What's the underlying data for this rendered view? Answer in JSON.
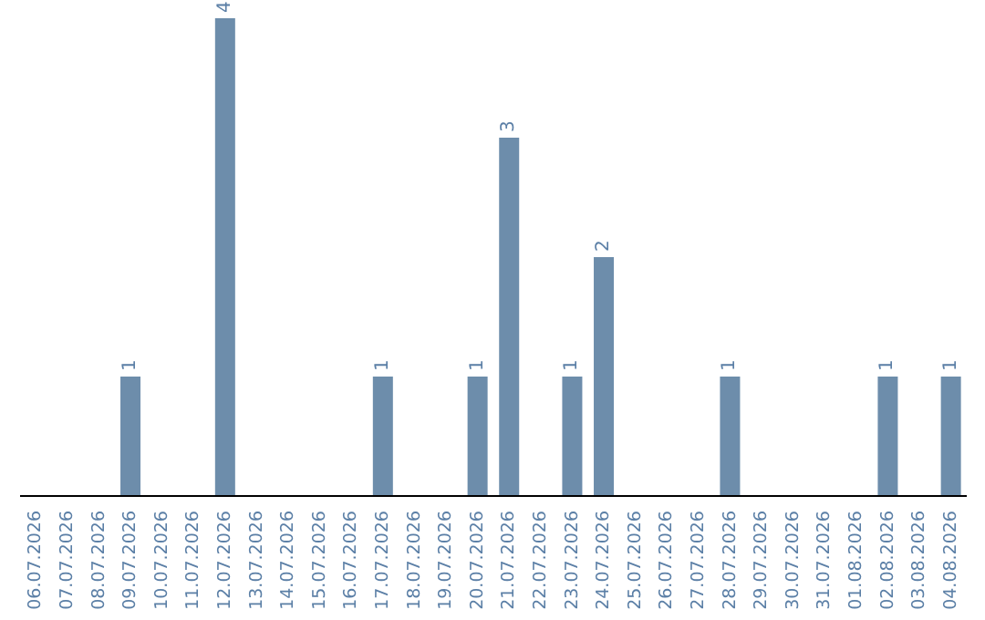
{
  "chart_data": {
    "type": "bar",
    "categories": [
      "06.07.2026",
      "07.07.2026",
      "08.07.2026",
      "09.07.2026",
      "10.07.2026",
      "11.07.2026",
      "12.07.2026",
      "13.07.2026",
      "14.07.2026",
      "15.07.2026",
      "16.07.2026",
      "17.07.2026",
      "18.07.2026",
      "19.07.2026",
      "20.07.2026",
      "21.07.2026",
      "22.07.2026",
      "23.07.2026",
      "24.07.2026",
      "25.07.2026",
      "26.07.2026",
      "27.07.2026",
      "28.07.2026",
      "29.07.2026",
      "30.07.2026",
      "31.07.2026",
      "01.08.2026",
      "02.08.2026",
      "03.08.2026",
      "04.08.2026"
    ],
    "values": [
      0,
      0,
      0,
      1,
      0,
      0,
      4,
      0,
      0,
      0,
      0,
      1,
      0,
      0,
      1,
      3,
      0,
      1,
      2,
      0,
      0,
      0,
      1,
      0,
      0,
      0,
      0,
      1,
      0,
      1
    ],
    "value_labels": [
      null,
      null,
      null,
      "1",
      null,
      null,
      "4",
      null,
      null,
      null,
      null,
      "1",
      null,
      null,
      "1",
      "3",
      null,
      "1",
      "2",
      null,
      null,
      null,
      "1",
      null,
      null,
      null,
      null,
      "1",
      null,
      "1"
    ],
    "color": "#6d8dab",
    "grid": false,
    "legend": false
  }
}
